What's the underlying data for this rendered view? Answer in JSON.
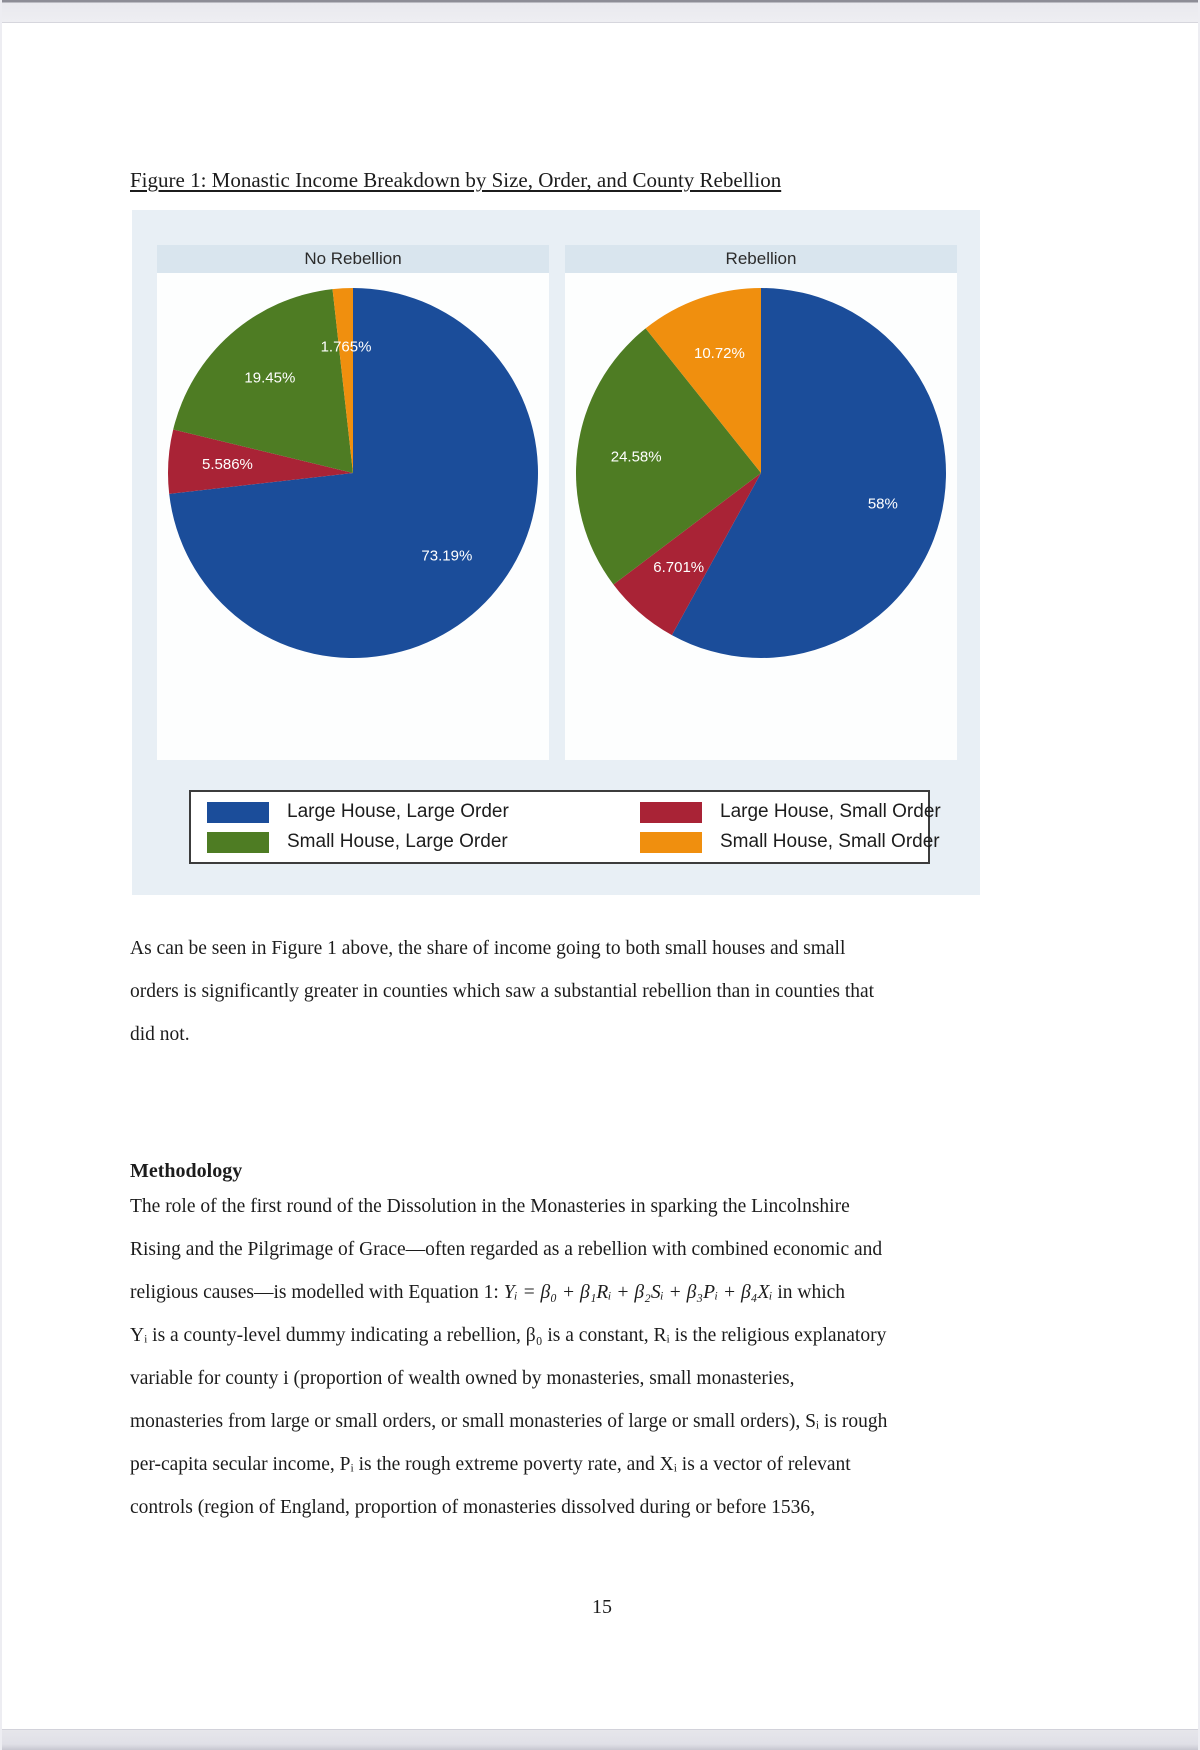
{
  "page": {
    "number": "15"
  },
  "figure": {
    "caption": "Figure 1: Monastic Income Breakdown by Size, Order, and County Rebellion"
  },
  "chart_data": [
    {
      "type": "pie",
      "title": "No Rebellion",
      "labels": [
        "Large House, Large Order",
        "Large House, Small Order",
        "Small House, Large Order",
        "Small House, Small Order"
      ],
      "values": [
        73.19,
        5.586,
        19.45,
        1.765
      ],
      "value_labels": [
        "73.19%",
        "5.586%",
        "19.45%",
        "1.765%"
      ],
      "colors": [
        "#1b4d9a",
        "#a92336",
        "#4e7c23",
        "#f08f0e"
      ],
      "start_angle_deg": 0,
      "direction": "clockwise",
      "label_radius_frac": 0.68
    },
    {
      "type": "pie",
      "title": "Rebellion",
      "labels": [
        "Large House, Large Order",
        "Large House, Small Order",
        "Small House, Large Order",
        "Small House, Small Order"
      ],
      "values": [
        58,
        6.701,
        24.58,
        10.72
      ],
      "value_labels": [
        "58%",
        "6.701%",
        "24.58%",
        "10.72%"
      ],
      "colors": [
        "#1b4d9a",
        "#a92336",
        "#4e7c23",
        "#f08f0e"
      ],
      "start_angle_deg": 0,
      "direction": "clockwise",
      "label_radius_frac": 0.68
    }
  ],
  "legend": {
    "position": "bottom",
    "entries": [
      {
        "label": "Large House, Large Order",
        "color": "#1b4d9a"
      },
      {
        "label": "Large House, Small Order",
        "color": "#a92336"
      },
      {
        "label": "Small House, Large Order",
        "color": "#4e7c23"
      },
      {
        "label": "Small House, Small Order",
        "color": "#f08f0e"
      }
    ]
  },
  "body": {
    "paragraph1_lines": [
      "As can be seen in Figure 1 above, the share of income going to both small houses and small",
      "orders is significantly greater in counties which saw a substantial rebellion than in counties that",
      "did not."
    ],
    "methodology": {
      "heading": "Methodology",
      "lines_before_eq": [
        "The role of the first round of the Dissolution in the Monasteries in sparking the Lincolnshire",
        "Rising and the Pilgrimage of Grace—often regarded as a rebellion with combined economic and"
      ],
      "eq_line": {
        "pre": "religious causes—is modelled with Equation 1: ",
        "eq": "Yᵢ = β₀ + β₁Rᵢ + β₂Sᵢ + β₃Pᵢ + β₄Xᵢ",
        "post": " in which"
      },
      "lines_after_eq": [
        "Yᵢ is a county-level dummy indicating a rebellion, β₀ is a constant, Rᵢ is the religious explanatory",
        "variable for county i (proportion of wealth owned by monasteries, small monasteries,",
        "monasteries from large or small orders, or small monasteries of large or small orders), Sᵢ is rough",
        "per-capita secular income, Pᵢ is the rough extreme poverty rate, and Xᵢ is a vector of relevant",
        "controls (region of England, proportion of monasteries dissolved during or before 1536,"
      ]
    }
  }
}
